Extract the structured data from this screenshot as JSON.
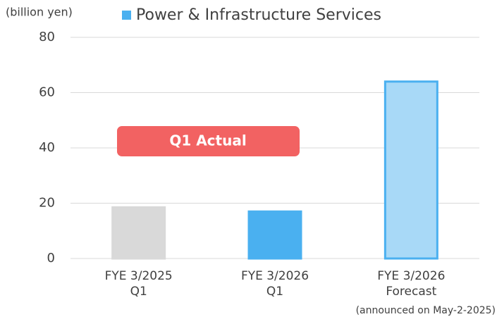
{
  "chart_data": {
    "type": "bar",
    "ylabel": "(billion yen)",
    "legend": "Power & Infrastructure Services",
    "legend_color": "#4ab0f0",
    "categories": [
      [
        "FYE 3/2025",
        "Q1"
      ],
      [
        "FYE 3/2026",
        "Q1"
      ],
      [
        "FYE 3/2026",
        "Forecast"
      ]
    ],
    "values": [
      18.5,
      17,
      64
    ],
    "colors": [
      "#d9d9d9",
      "#4ab0f0",
      "#a8d9f7"
    ],
    "edgecolors": [
      "#d9d9d9",
      "#4ab0f0",
      "#4ab0f0"
    ],
    "annotation": "Q1 Actual",
    "annotation_color": "#f26262",
    "note": "(announced on May-2-2025)",
    "ylim": [
      0,
      80
    ],
    "yticks": [
      0,
      20,
      40,
      60,
      80
    ],
    "grid": true
  }
}
